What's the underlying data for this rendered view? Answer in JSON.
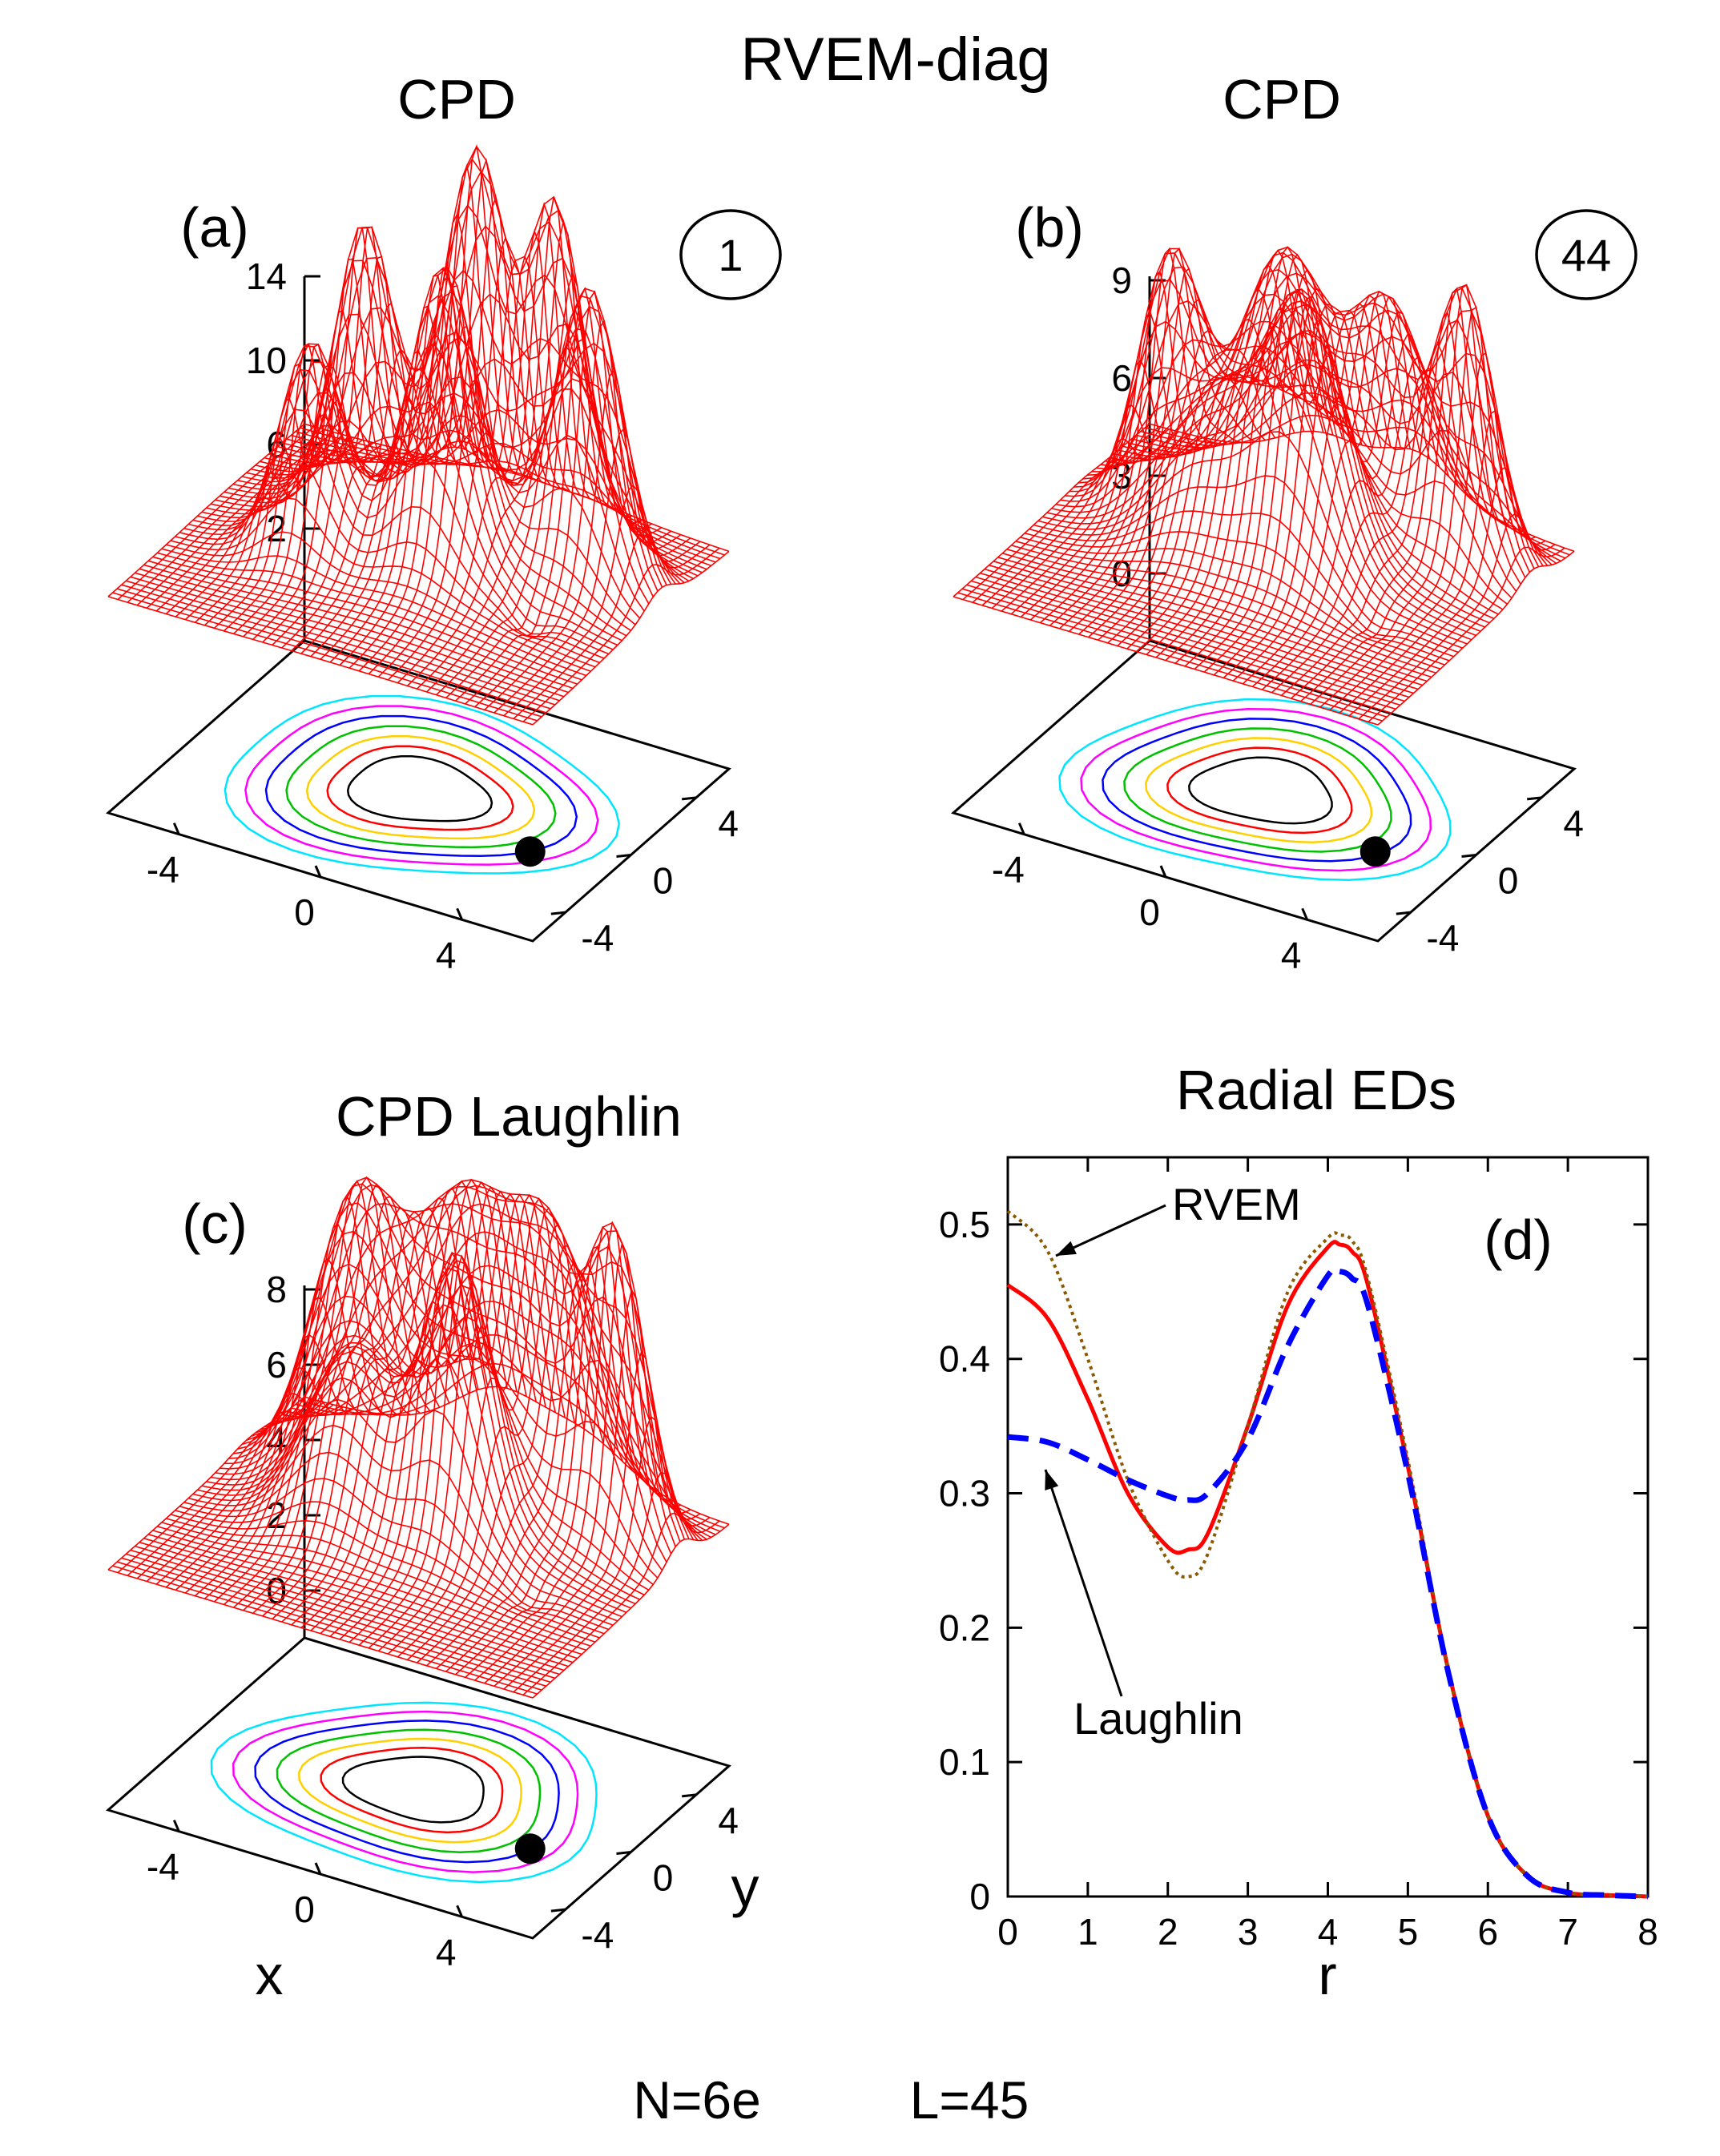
{
  "figure": {
    "title": "RVEM-diag",
    "footer_n": "N=6e",
    "footer_l": "L=45"
  },
  "chart_data": [
    {
      "panel": "(a)",
      "type": "surface",
      "title": "CPD",
      "badge": "1",
      "zticks": [
        "14",
        "10",
        "6",
        "2"
      ],
      "xticks": [
        "-4",
        "0",
        "4"
      ],
      "yticks": [
        "4",
        "0",
        "-4"
      ],
      "peaks": [
        {
          "x": -2.6,
          "y": 2.3,
          "z": 11
        },
        {
          "x": 0.0,
          "y": 3.5,
          "z": 14
        },
        {
          "x": 2.2,
          "y": 3.6,
          "z": 13
        },
        {
          "x": 4.0,
          "y": 1.8,
          "z": 12.5
        },
        {
          "x": 0.8,
          "y": -0.2,
          "z": 11.5
        },
        {
          "x": -2.6,
          "y": -1.0,
          "z": 9
        }
      ],
      "fixed_point": {
        "x": 3.8,
        "y": -1.4
      }
    },
    {
      "panel": "(b)",
      "type": "surface",
      "title": "CPD",
      "badge": "44",
      "zticks": [
        "9",
        "6",
        "3",
        "0"
      ],
      "xticks": [
        "-4",
        "0",
        "4"
      ],
      "yticks": [
        "4",
        "0",
        "-4"
      ],
      "fixed_point": {
        "x": 3.8,
        "y": -1.4
      }
    },
    {
      "panel": "(c)",
      "type": "surface",
      "title": "CPD   Laughlin",
      "zticks": [
        "8",
        "6",
        "4",
        "2",
        "0"
      ],
      "xticks": [
        "-4",
        "0",
        "4"
      ],
      "yticks": [
        "4",
        "0",
        "-4"
      ],
      "xlabel": "x",
      "ylabel": "y",
      "fixed_point": {
        "x": 3.8,
        "y": -1.4
      }
    },
    {
      "panel": "(d)",
      "type": "line",
      "title": "Radial   EDs",
      "xlabel": "r",
      "xlim": [
        0,
        8
      ],
      "ylim": [
        0,
        0.55
      ],
      "xticks": [
        "0",
        "1",
        "2",
        "3",
        "4",
        "5",
        "6",
        "7",
        "8"
      ],
      "yticks": [
        "0",
        "0.1",
        "0.2",
        "0.3",
        "0.4",
        "0.5"
      ],
      "annotations": [
        "RVEM",
        "Laughlin"
      ],
      "x": [
        0,
        0.5,
        1.0,
        1.5,
        2.0,
        2.25,
        2.5,
        3.0,
        3.5,
        4.0,
        4.15,
        4.3,
        4.5,
        5.0,
        5.5,
        6.0,
        6.5,
        7.0,
        7.5,
        8.0
      ],
      "series": [
        {
          "style": "solid",
          "color": "#ff0000",
          "values": [
            0.455,
            0.43,
            0.37,
            0.3,
            0.26,
            0.258,
            0.27,
            0.35,
            0.44,
            0.483,
            0.485,
            0.48,
            0.455,
            0.32,
            0.17,
            0.06,
            0.015,
            0.003,
            0.001,
            0
          ]
        },
        {
          "name": "RVEM",
          "style": "dotted",
          "color": "#8b5a00",
          "values": [
            0.51,
            0.48,
            0.4,
            0.31,
            0.25,
            0.238,
            0.255,
            0.35,
            0.45,
            0.49,
            0.492,
            0.488,
            0.46,
            0.325,
            0.17,
            0.06,
            0.015,
            0.003,
            0.001,
            0
          ]
        },
        {
          "name": "Laughlin",
          "style": "dashed",
          "color": "#0000ff",
          "values": [
            0.342,
            0.338,
            0.325,
            0.31,
            0.298,
            0.295,
            0.3,
            0.34,
            0.41,
            0.462,
            0.465,
            0.46,
            0.44,
            0.315,
            0.168,
            0.06,
            0.015,
            0.003,
            0.001,
            0
          ]
        }
      ]
    }
  ]
}
